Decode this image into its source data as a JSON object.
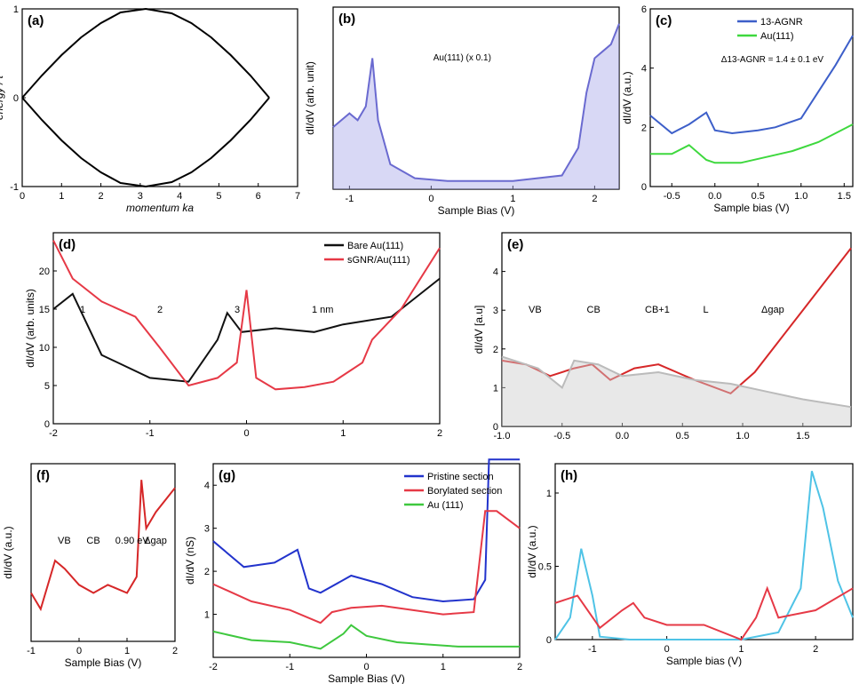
{
  "chart_data": [
    {
      "panel": "a",
      "type": "line",
      "label": "(a)",
      "xlabel": "momentum ka",
      "ylabel": "energy / t",
      "xlim": [
        0,
        7
      ],
      "ylim": [
        -1,
        1
      ],
      "xticks": [
        "0",
        "1",
        "2",
        "3",
        "4",
        "5",
        "6",
        "7"
      ],
      "yticks": [
        "-1",
        "0",
        "1"
      ],
      "series": [
        {
          "values": "upper arc",
          "x": [
            0,
            0.5,
            1,
            1.5,
            2,
            2.5,
            3.14,
            3.8,
            4.3,
            4.8,
            5.3,
            5.8,
            6.28
          ],
          "y": [
            0.0,
            0.25,
            0.48,
            0.68,
            0.84,
            0.96,
            1.0,
            0.95,
            0.84,
            0.68,
            0.48,
            0.25,
            0.0
          ]
        },
        {
          "values": "lower arc",
          "x": [
            0,
            0.5,
            1,
            1.5,
            2,
            2.5,
            3.14,
            3.8,
            4.3,
            4.8,
            5.3,
            5.8,
            6.28
          ],
          "y": [
            0.0,
            -0.25,
            -0.48,
            -0.68,
            -0.84,
            -0.96,
            -1.0,
            -0.95,
            -0.84,
            -0.68,
            -0.48,
            -0.25,
            0.0
          ]
        }
      ]
    },
    {
      "panel": "b",
      "type": "area",
      "label": "(b)",
      "xlabel": "Sample Bias (V)",
      "ylabel": "dI/dV (arb. unit)",
      "annotation": "Au(111) (x 0.1)",
      "xlim": [
        -1.2,
        2.3
      ],
      "xticks": [
        "-1",
        "0",
        "1",
        "2"
      ],
      "x": [
        -1.2,
        -1.0,
        -0.9,
        -0.8,
        -0.72,
        -0.65,
        -0.5,
        -0.2,
        0.2,
        1.0,
        1.6,
        1.8,
        1.9,
        2.0,
        2.1,
        2.2,
        2.3
      ],
      "y": [
        0.45,
        0.55,
        0.5,
        0.6,
        0.95,
        0.5,
        0.18,
        0.08,
        0.06,
        0.06,
        0.1,
        0.3,
        0.7,
        0.95,
        1.0,
        1.05,
        1.2
      ]
    },
    {
      "panel": "c",
      "type": "line",
      "label": "(c)",
      "xlabel": "Sample bias (V)",
      "ylabel": "dI/dV (a.u.)",
      "annotation": "Δ13-AGNR = 1.4 ± 0.1 eV",
      "xlim": [
        -0.75,
        1.6
      ],
      "ylim": [
        0,
        6
      ],
      "xticks": [
        "-0.5",
        "0.0",
        "0.5",
        "1.0",
        "1.5"
      ],
      "yticks": [
        "0",
        "2",
        "4",
        "6"
      ],
      "series": [
        {
          "name": "13-AGNR",
          "color": "#3d5fc9",
          "x": [
            -0.75,
            -0.5,
            -0.3,
            -0.1,
            0.0,
            0.2,
            0.5,
            0.7,
            1.0,
            1.2,
            1.4,
            1.6
          ],
          "y": [
            2.4,
            1.8,
            2.1,
            2.5,
            1.9,
            1.8,
            1.9,
            2.0,
            2.3,
            3.2,
            4.1,
            5.1
          ]
        },
        {
          "name": "Au(111)",
          "color": "#3ed83e",
          "x": [
            -0.75,
            -0.5,
            -0.3,
            -0.1,
            0.0,
            0.3,
            0.6,
            0.9,
            1.2,
            1.6
          ],
          "y": [
            1.1,
            1.1,
            1.4,
            0.9,
            0.8,
            0.8,
            1.0,
            1.2,
            1.5,
            2.1
          ]
        }
      ]
    },
    {
      "panel": "d",
      "type": "line",
      "label": "(d)",
      "xlabel": "",
      "ylabel": "dI/dV (arb. units)",
      "xlim": [
        -2,
        2
      ],
      "ylim": [
        0,
        25
      ],
      "xticks": [
        "-2",
        "-1",
        "0",
        "1",
        "2"
      ],
      "yticks": [
        "0",
        "5",
        "10",
        "15",
        "20"
      ],
      "annotations": [
        "1",
        "2",
        "3",
        "1 nm"
      ],
      "series": [
        {
          "name": "Bare Au(111)",
          "color": "#111111",
          "x": [
            -2,
            -1.8,
            -1.5,
            -1.0,
            -0.6,
            -0.3,
            -0.2,
            -0.05,
            0.3,
            0.7,
            1.0,
            1.5,
            2.0
          ],
          "y": [
            15,
            17,
            9,
            6,
            5.5,
            11,
            14.5,
            12,
            12.5,
            12,
            13,
            14,
            19
          ]
        },
        {
          "name": "sGNR/Au(111)",
          "color": "#e63946",
          "x": [
            -2,
            -1.8,
            -1.5,
            -1.15,
            -0.9,
            -0.6,
            -0.3,
            -0.1,
            0.0,
            0.1,
            0.3,
            0.6,
            0.9,
            1.2,
            1.3,
            1.6,
            2.0
          ],
          "y": [
            24,
            19,
            16,
            14,
            10,
            5,
            6,
            8,
            17.5,
            6,
            4.5,
            4.8,
            5.5,
            8,
            11,
            15,
            23
          ]
        }
      ]
    },
    {
      "panel": "e",
      "type": "area",
      "label": "(e)",
      "xlabel": "",
      "ylabel": "dI/dV [a.u]",
      "xlim": [
        -1.0,
        1.9
      ],
      "ylim": [
        0,
        5
      ],
      "xticks": [
        "-1.0",
        "-0.5",
        "0.0",
        "0.5",
        "1.0",
        "1.5"
      ],
      "yticks": [
        "0",
        "1",
        "2",
        "3",
        "4"
      ],
      "annotations": [
        "VB",
        "CB",
        "CB+1",
        "L",
        "Δgap"
      ],
      "series": [
        {
          "values": "red STS curve",
          "color": "#d62728",
          "x": [
            -1.0,
            -0.8,
            -0.6,
            -0.4,
            -0.25,
            -0.1,
            0.1,
            0.3,
            0.6,
            0.9,
            1.1,
            1.3,
            1.5,
            1.7,
            1.9
          ],
          "y": [
            1.7,
            1.6,
            1.3,
            1.5,
            1.6,
            1.2,
            1.5,
            1.6,
            1.2,
            0.85,
            1.4,
            2.2,
            3.0,
            3.8,
            4.6
          ]
        },
        {
          "values": "gray background",
          "color": "#bbbbbb",
          "x": [
            -1.0,
            -0.7,
            -0.5,
            -0.4,
            -0.2,
            0.0,
            0.3,
            0.6,
            0.9,
            1.2,
            1.5,
            1.9
          ],
          "y": [
            1.8,
            1.5,
            1.0,
            1.7,
            1.6,
            1.3,
            1.4,
            1.2,
            1.1,
            0.9,
            0.7,
            0.5
          ]
        }
      ]
    },
    {
      "panel": "f",
      "type": "line",
      "label": "(f)",
      "xlabel": "Sample Bias (V)",
      "ylabel": "dI/dV (a.u.)",
      "xlim": [
        -1,
        2
      ],
      "xticks": [
        "-1",
        "0",
        "1",
        "2"
      ],
      "annotations": [
        "VB",
        "CB",
        "0.90 eV",
        "Δgap"
      ],
      "x": [
        -1.0,
        -0.8,
        -0.5,
        -0.3,
        0.0,
        0.3,
        0.6,
        1.0,
        1.2,
        1.3,
        1.4,
        1.6,
        2.0
      ],
      "y": [
        0.3,
        0.2,
        0.5,
        0.45,
        0.35,
        0.3,
        0.35,
        0.3,
        0.4,
        1.0,
        0.7,
        0.8,
        0.95
      ]
    },
    {
      "panel": "g",
      "type": "line",
      "label": "(g)",
      "xlabel": "Sample Bias (V)",
      "ylabel": "dI/dV (nS)",
      "xlim": [
        -2,
        2
      ],
      "ylim": [
        0,
        4.5
      ],
      "xticks": [
        "-2",
        "-1",
        "0",
        "1",
        "2"
      ],
      "yticks": [
        "1",
        "2",
        "3",
        "4"
      ],
      "series": [
        {
          "name": "Pristine section",
          "color": "#2233cc",
          "x": [
            -2,
            -1.6,
            -1.2,
            -0.9,
            -0.75,
            -0.6,
            -0.2,
            0.2,
            0.6,
            1.0,
            1.4,
            1.55,
            1.6,
            2.0
          ],
          "y": [
            2.7,
            2.1,
            2.2,
            2.5,
            1.6,
            1.5,
            1.9,
            1.7,
            1.4,
            1.3,
            1.35,
            1.8,
            4.6,
            4.6
          ]
        },
        {
          "name": "Borylated section",
          "color": "#e63946",
          "x": [
            -2,
            -1.5,
            -1.0,
            -0.6,
            -0.45,
            -0.2,
            0.2,
            0.6,
            1.0,
            1.4,
            1.55,
            1.7,
            2.0
          ],
          "y": [
            1.7,
            1.3,
            1.1,
            0.8,
            1.05,
            1.15,
            1.2,
            1.1,
            1.0,
            1.05,
            3.4,
            3.4,
            3.0
          ]
        },
        {
          "name": "Au (111)",
          "color": "#3ec83e",
          "x": [
            -2,
            -1.5,
            -1.0,
            -0.6,
            -0.3,
            -0.2,
            0.0,
            0.4,
            0.8,
            1.2,
            1.6,
            2.0
          ],
          "y": [
            0.6,
            0.4,
            0.35,
            0.2,
            0.55,
            0.75,
            0.5,
            0.35,
            0.3,
            0.25,
            0.25,
            0.25
          ]
        }
      ]
    },
    {
      "panel": "h",
      "type": "line",
      "label": "(h)",
      "xlabel": "Sample bias (V)",
      "ylabel": "dI/dV (a.u.)",
      "xlim": [
        -1.5,
        2.5
      ],
      "ylim": [
        0,
        1.2
      ],
      "xticks": [
        "-1",
        "0",
        "1",
        "2"
      ],
      "yticks": [
        "0",
        "0.5",
        "1"
      ],
      "series": [
        {
          "values": "cyan curve",
          "color": "#4fc3e6",
          "x": [
            -1.5,
            -1.3,
            -1.15,
            -1.0,
            -0.9,
            -0.5,
            0.0,
            0.5,
            1.0,
            1.5,
            1.8,
            1.95,
            2.1,
            2.3,
            2.5
          ],
          "y": [
            0.0,
            0.15,
            0.62,
            0.3,
            0.02,
            0.0,
            0.0,
            0.0,
            0.0,
            0.05,
            0.35,
            1.15,
            0.9,
            0.4,
            0.15
          ]
        },
        {
          "values": "red curve",
          "color": "#e63946",
          "x": [
            -1.5,
            -1.2,
            -0.9,
            -0.6,
            -0.45,
            -0.3,
            0.0,
            0.5,
            1.0,
            1.2,
            1.35,
            1.5,
            2.0,
            2.5
          ],
          "y": [
            0.25,
            0.3,
            0.08,
            0.2,
            0.25,
            0.15,
            0.1,
            0.1,
            0.0,
            0.15,
            0.35,
            0.15,
            0.2,
            0.35
          ]
        }
      ]
    }
  ]
}
